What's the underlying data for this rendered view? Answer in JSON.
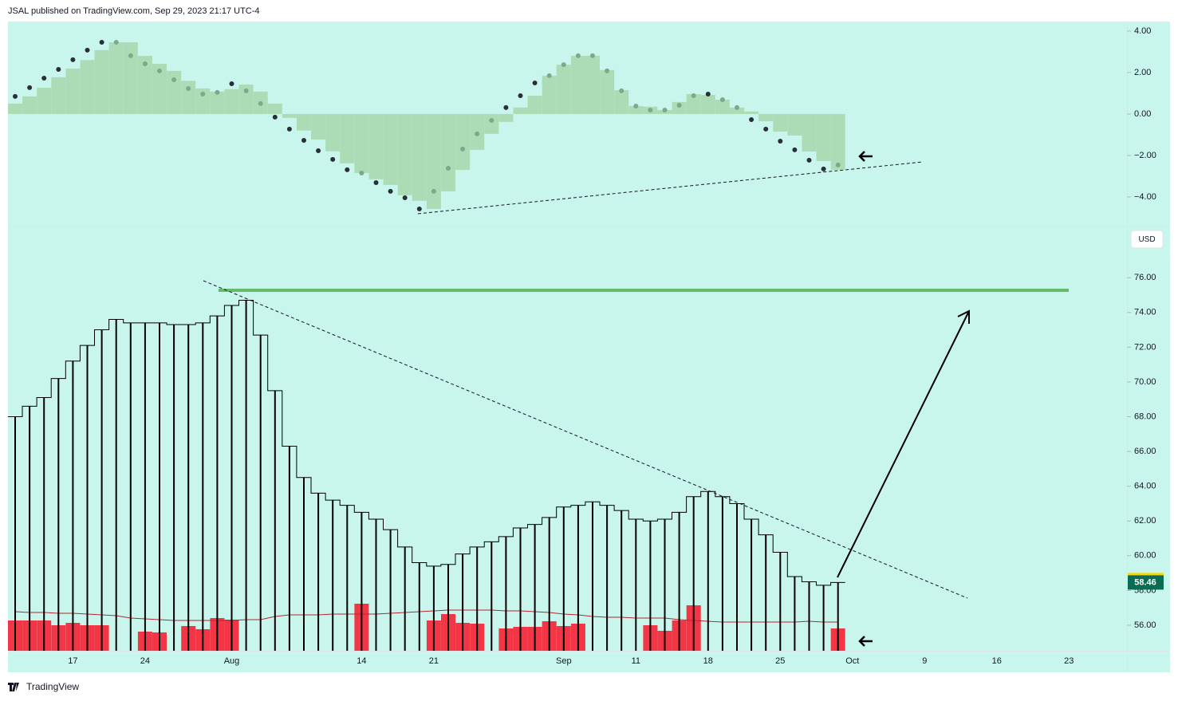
{
  "header": {
    "text": "JSAL published on TradingView.com, Sep 29, 2023 21:17 UTC-4"
  },
  "footer": {
    "logo_text": "TradingView"
  },
  "chart_data": [
    {
      "type": "bar",
      "color": "#acdcb5",
      "values": [
        0.5,
        0.85,
        1.27,
        1.77,
        2.19,
        2.6,
        3.08,
        3.46,
        3.46,
        2.8,
        2.42,
        2.08,
        1.6,
        1.23,
        1.08,
        1.2,
        1.42,
        1.08,
        0.5,
        -0.19,
        -0.8,
        -1.23,
        -1.8,
        -2.38,
        -2.85,
        -3.15,
        -3.42,
        -3.92,
        -4.19,
        -4.58,
        -3.73,
        -2.7,
        -1.73,
        -0.96,
        -0.38,
        0.31,
        0.88,
        1.85,
        2.38,
        2.81,
        2.81,
        2.12,
        1.15,
        0.38,
        0.35,
        0.19,
        0.58,
        0.96,
        0.92,
        0.69,
        0.31,
        0.12,
        -0.35,
        -0.85,
        -1.04,
        -1.81,
        -2.27,
        -2.69
      ],
      "dots": {
        "color": "#2a2e39",
        "inner_color": "#7ca98a",
        "values": [
          0.85,
          1.27,
          1.73,
          2.15,
          2.62,
          3.08,
          3.46,
          3.46,
          2.81,
          2.42,
          2.08,
          1.65,
          1.23,
          0.96,
          1.04,
          1.46,
          1.12,
          0.5,
          -0.15,
          -0.73,
          -1.27,
          -1.77,
          -2.19,
          -2.69,
          -2.85,
          -3.31,
          -3.73,
          -4.04,
          -4.58,
          -3.73,
          -2.62,
          -1.69,
          -0.96,
          -0.31,
          0.31,
          0.88,
          1.5,
          1.85,
          2.38,
          2.81,
          2.81,
          2.08,
          1.12,
          0.38,
          0.19,
          0.19,
          0.42,
          0.88,
          0.96,
          0.69,
          0.31,
          -0.27,
          -0.73,
          -1.31,
          -1.73,
          -2.23,
          -2.65,
          -2.46
        ]
      },
      "ylim": [
        -5.35,
        4.46
      ],
      "yticks": [
        {
          "value": 4,
          "label": "4.00"
        },
        {
          "value": 2,
          "label": "2.00"
        },
        {
          "value": 0,
          "label": "0.00"
        },
        {
          "value": -2,
          "label": "−2.00"
        },
        {
          "value": -4,
          "label": "−4.00"
        }
      ]
    },
    {
      "type": "column",
      "currency": "USD",
      "categories": [
        null,
        null,
        null,
        null,
        "17",
        null,
        null,
        null,
        null,
        "24",
        null,
        null,
        null,
        null,
        null,
        "Aug",
        null,
        null,
        null,
        null,
        null,
        null,
        null,
        null,
        "14",
        null,
        null,
        null,
        null,
        "21",
        null,
        null,
        null,
        null,
        null,
        null,
        null,
        null,
        "Sep",
        null,
        null,
        null,
        null,
        "11",
        null,
        null,
        null,
        null,
        "18",
        null,
        null,
        null,
        null,
        "25",
        null,
        null,
        null,
        null,
        "Oct",
        null,
        null,
        null,
        null,
        "9",
        null,
        null,
        null,
        null,
        "16",
        null,
        null,
        null,
        null,
        "23",
        null,
        null,
        null,
        null
      ],
      "series": [
        {
          "color": "#000000",
          "values": [
            68.0,
            68.6,
            69.1,
            70.2,
            71.2,
            72.1,
            73.0,
            73.6,
            73.4,
            73.4,
            73.4,
            73.3,
            73.3,
            73.4,
            73.8,
            74.4,
            74.7,
            72.7,
            69.5,
            66.3,
            64.5,
            63.6,
            63.2,
            62.9,
            62.5,
            62.1,
            61.5,
            60.5,
            59.6,
            59.4,
            59.5,
            60.1,
            60.5,
            60.8,
            61.1,
            61.6,
            61.8,
            62.2,
            62.8,
            62.9,
            63.1,
            62.9,
            62.6,
            62.1,
            62.0,
            62.1,
            62.5,
            63.4,
            63.7,
            63.4,
            63.0,
            62.1,
            61.2,
            60.2,
            58.8,
            58.5,
            58.3,
            58.46,
            null,
            null,
            null,
            null,
            null,
            null,
            null,
            null,
            null,
            null,
            null,
            null,
            null,
            null,
            null,
            null,
            null,
            null,
            null,
            null
          ]
        }
      ],
      "volume": {
        "color": "#f23645",
        "ma_color": "#b22833",
        "values": [
          38,
          38,
          38,
          32,
          35,
          32,
          32,
          null,
          null,
          24,
          23,
          null,
          31,
          27,
          41,
          39,
          null,
          null,
          null,
          null,
          null,
          null,
          null,
          null,
          59,
          null,
          null,
          null,
          null,
          38,
          46,
          35,
          34,
          null,
          28,
          30,
          30,
          37,
          31,
          34,
          null,
          null,
          null,
          null,
          32,
          25,
          38,
          57,
          null,
          null,
          null,
          null,
          null,
          null,
          null,
          null,
          null,
          28,
          null,
          null,
          null,
          null,
          null,
          null,
          null,
          null,
          null,
          null,
          null,
          null,
          null,
          null,
          null,
          null,
          null,
          null,
          null,
          null
        ],
        "ma_values": [
          49,
          48,
          48,
          47,
          47,
          46,
          45,
          44,
          41,
          40,
          39,
          38,
          38,
          38,
          38,
          38,
          39,
          39,
          43,
          45,
          45,
          45,
          46,
          46,
          46,
          46,
          47,
          48,
          49,
          50,
          51,
          51,
          51,
          51,
          50,
          50,
          49,
          48,
          46,
          45,
          43,
          42,
          42,
          41,
          41,
          41,
          39,
          38,
          37,
          36,
          36,
          36,
          36,
          36,
          36,
          37,
          36,
          36,
          null,
          null,
          null,
          null,
          null,
          null,
          null,
          null,
          null,
          null,
          null,
          null,
          null,
          null,
          null,
          null,
          null,
          null,
          null,
          null
        ]
      },
      "ylim": [
        54.53,
        78.9
      ],
      "yticks": [
        {
          "value": 56,
          "label": "56.00"
        },
        {
          "value": 58,
          "label": "58.00"
        },
        {
          "value": 60,
          "label": "60.00"
        },
        {
          "value": 62,
          "label": "62.00"
        },
        {
          "value": 64,
          "label": "64.00"
        },
        {
          "value": 66,
          "label": "66.00"
        },
        {
          "value": 68,
          "label": "68.00"
        },
        {
          "value": 70,
          "label": "70.00"
        },
        {
          "value": 72,
          "label": "72.00"
        },
        {
          "value": 74,
          "label": "74.00"
        },
        {
          "value": 76,
          "label": "76.00"
        }
      ]
    }
  ]
}
